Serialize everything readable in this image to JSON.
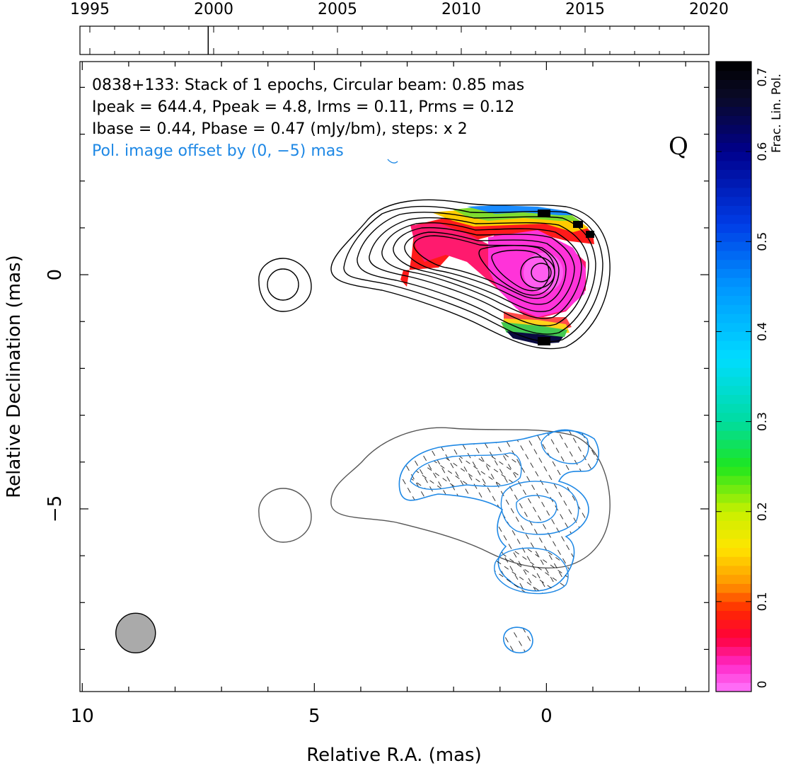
{
  "timeline": {
    "years": [
      "1995",
      "2000",
      "2005",
      "2010",
      "2015",
      "2020"
    ],
    "year_values": [
      1995,
      2000,
      2005,
      2010,
      2015,
      2020
    ],
    "range": [
      1994.6,
      2020
    ],
    "epoch_markers": [
      1999.78
    ]
  },
  "annotations": {
    "line1": "0838+133: Stack of 1 epochs, Circular beam: 0.85 mas",
    "line2": "Ipeak = 644.4, Ppeak = 4.8, Irms = 0.11, Prms = 0.12",
    "line3": "Ibase = 0.44, Pbase = 0.47 (mJy/bm), steps: x 2",
    "line4": "Pol. image offset by (0, −5) mas",
    "line4_color": "#1e88e5",
    "class_label": "Q"
  },
  "axes": {
    "xlabel": "Relative R.A. (mas)",
    "ylabel": "Relative Declination (mas)",
    "xticks": [
      "10",
      "5",
      "0"
    ],
    "xtick_values": [
      10,
      5,
      0
    ],
    "yticks": [
      "0",
      "−5"
    ],
    "ytick_values": [
      0,
      -5
    ],
    "xlim": [
      10.05,
      -3.5
    ],
    "ylim": [
      -8.9,
      4.55
    ]
  },
  "colorbar": {
    "label": "Frac. Lin. Pol.",
    "ticks": [
      "0",
      "0.1",
      "0.2",
      "0.3",
      "0.4",
      "0.5",
      "0.6",
      "0.7"
    ],
    "range": [
      0,
      0.7
    ]
  },
  "colors": {
    "total_intensity_contour": "#000000",
    "offset_intensity_contour": "#555555",
    "polarization_contour": "#1e88e5",
    "beam_fill": "#aaaaaa"
  },
  "chart_data": {
    "type": "heatmap",
    "title": "0838+133: Stack of 1 epochs, Circular beam: 0.85 mas",
    "xlabel": "Relative R.A. (mas)",
    "ylabel": "Relative Declination (mas)",
    "xlim": [
      10.05,
      -3.5
    ],
    "ylim": [
      -8.9,
      4.55
    ],
    "stats": {
      "Ipeak": 644.4,
      "Ppeak": 4.8,
      "Irms": 0.11,
      "Prms": 0.12,
      "Ibase": 0.44,
      "Pbase": 0.47,
      "units": "mJy/bm",
      "contour_step": 2
    },
    "beam": {
      "x": 8.85,
      "y": -7.65,
      "fwhm": 0.85
    },
    "core": {
      "x": 0,
      "y": 0
    },
    "jet_knot": {
      "x": 5.8,
      "y": -0.2
    },
    "pol_offset": [
      0,
      -5
    ],
    "frac_pol_regions": [
      {
        "x": 0.0,
        "y": 0.0,
        "value": 0.02
      },
      {
        "x": 1.8,
        "y": 0.5,
        "value": 0.06
      },
      {
        "x": 2.5,
        "y": 0.6,
        "value": 0.05
      },
      {
        "x": 1.2,
        "y": 1.1,
        "value": 0.15
      },
      {
        "x": -0.3,
        "y": -1.1,
        "value": 0.2
      }
    ]
  }
}
